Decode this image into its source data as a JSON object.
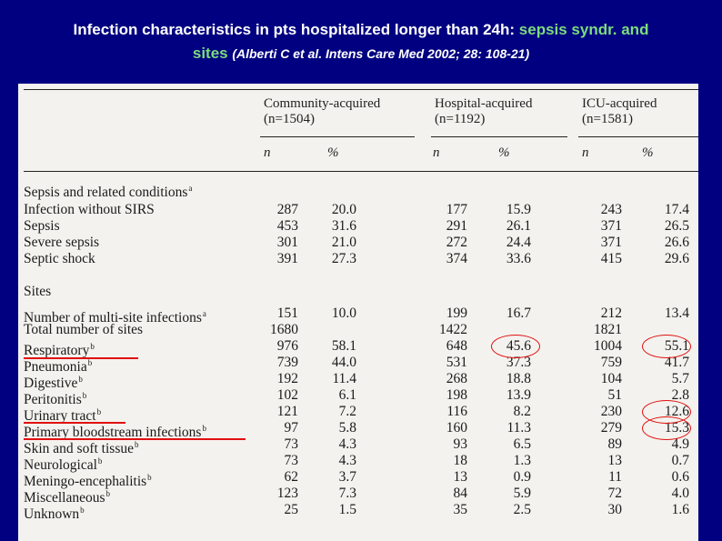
{
  "title": {
    "part1": "Infection characteristics in pts hospitalized longer than 24h: ",
    "highlight1": "sepsis syndr. and",
    "highlight2": "sites",
    "citation": "(Alberti C et al. Intens Care Med 2002; 28: 108-21)",
    "highlight_color": "#7ddc7d"
  },
  "table": {
    "headers": {
      "community": "Community-acquired",
      "community_n": "(n=1504)",
      "hospital": "Hospital-acquired",
      "hospital_n": "(n=1192)",
      "icu": "ICU-acquired",
      "icu_n": "(n=1581)"
    },
    "subheaders": {
      "n": "n",
      "pct": "%"
    },
    "rows": [
      {
        "label": "Sepsis and related conditions",
        "sup": "a",
        "values": [
          "",
          "",
          "",
          "",
          "",
          ""
        ]
      },
      {
        "label": "Infection without SIRS",
        "sup": "",
        "values": [
          "287",
          "20.0",
          "177",
          "15.9",
          "243",
          "17.4"
        ]
      },
      {
        "label": "Sepsis",
        "sup": "",
        "values": [
          "453",
          "31.6",
          "291",
          "26.1",
          "371",
          "26.5"
        ]
      },
      {
        "label": "Severe sepsis",
        "sup": "",
        "values": [
          "301",
          "21.0",
          "272",
          "24.4",
          "371",
          "26.6"
        ]
      },
      {
        "label": "Septic shock",
        "sup": "",
        "values": [
          "391",
          "27.3",
          "374",
          "33.6",
          "415",
          "29.6"
        ]
      },
      {
        "label": "Sites",
        "sup": "",
        "values": [
          "",
          "",
          "",
          "",
          "",
          ""
        ]
      },
      {
        "label": "Number of multi-site infections",
        "sup": "a",
        "values": [
          "151",
          "10.0",
          "199",
          "16.7",
          "212",
          "13.4"
        ]
      },
      {
        "label": "Total number of sites",
        "sup": "",
        "values": [
          "1680",
          "",
          "1422",
          "",
          "1821",
          ""
        ]
      },
      {
        "label": "Respiratory",
        "sup": "b",
        "values": [
          "976",
          "58.1",
          "648",
          "45.6",
          "1004",
          "55.1"
        ]
      },
      {
        "label": "Pneumonia",
        "sup": "b",
        "values": [
          "739",
          "44.0",
          "531",
          "37.3",
          "759",
          "41.7"
        ]
      },
      {
        "label": "Digestive",
        "sup": "b",
        "values": [
          "192",
          "11.4",
          "268",
          "18.8",
          "104",
          "5.7"
        ]
      },
      {
        "label": "Peritonitis",
        "sup": "b",
        "values": [
          "102",
          "6.1",
          "198",
          "13.9",
          "51",
          "2.8"
        ]
      },
      {
        "label": "Urinary tract",
        "sup": "b",
        "values": [
          "121",
          "7.2",
          "116",
          "8.2",
          "230",
          "12.6"
        ]
      },
      {
        "label": "Primary bloodstream infections",
        "sup": "b",
        "values": [
          "97",
          "5.8",
          "160",
          "11.3",
          "279",
          "15.3"
        ]
      },
      {
        "label": "Skin and soft tissue",
        "sup": "b",
        "values": [
          "73",
          "4.3",
          "93",
          "6.5",
          "89",
          "4.9"
        ]
      },
      {
        "label": "Neurological",
        "sup": "b",
        "values": [
          "73",
          "4.3",
          "18",
          "1.3",
          "13",
          "0.7"
        ]
      },
      {
        "label": "Meningo-encephalitis",
        "sup": "b",
        "values": [
          "62",
          "3.7",
          "13",
          "0.9",
          "11",
          "0.6"
        ]
      },
      {
        "label": "Miscellaneous",
        "sup": "b",
        "values": [
          "123",
          "7.3",
          "84",
          "5.9",
          "72",
          "4.0"
        ]
      },
      {
        "label": "Unknown",
        "sup": "b",
        "values": [
          "25",
          "1.5",
          "35",
          "2.5",
          "30",
          "1.6"
        ]
      }
    ]
  },
  "annotation_color": "#e01010"
}
